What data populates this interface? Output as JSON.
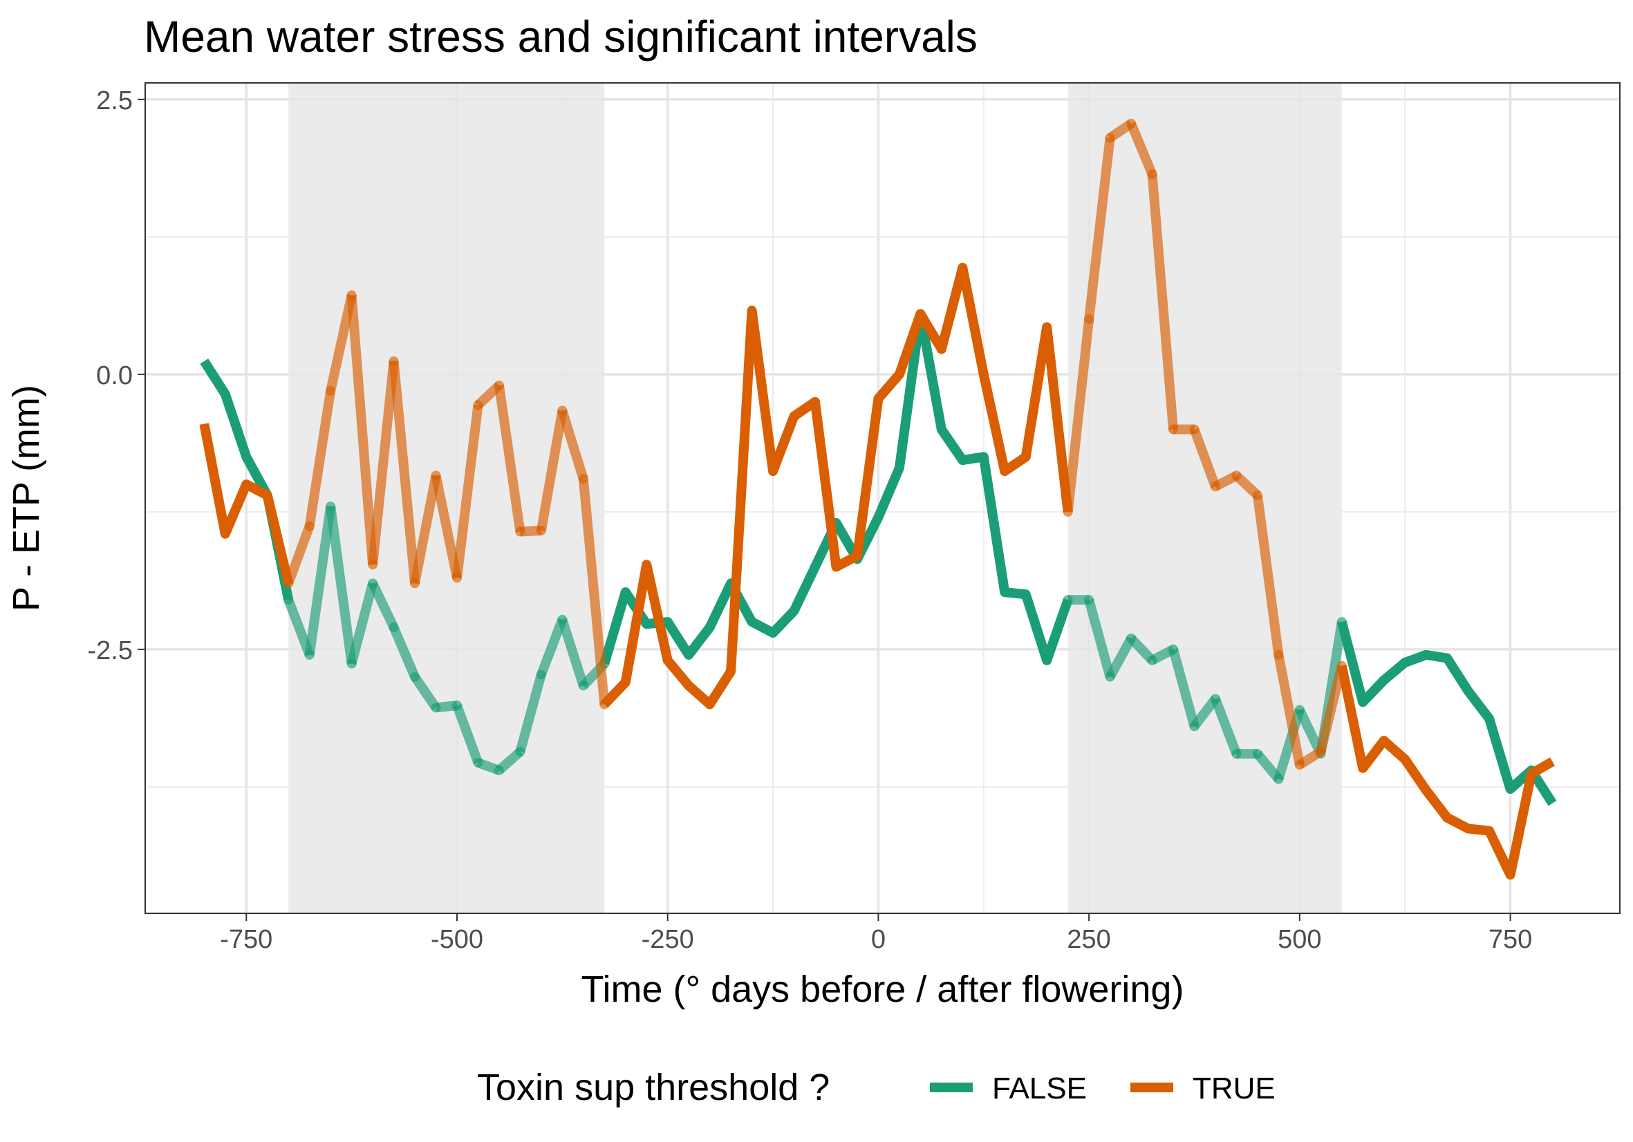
{
  "chart_data": {
    "type": "line",
    "title": "Mean water stress and significant intervals",
    "xlabel": "Time (° days before / after flowering)",
    "ylabel": "P - ETP (mm)",
    "xlim": [
      -870,
      880
    ],
    "ylim": [
      -4.9,
      2.65
    ],
    "xticks": [
      -750,
      -500,
      -250,
      0,
      250,
      500,
      750
    ],
    "xtick_labels": [
      "-750",
      "-500",
      "-250",
      "0",
      "250",
      "500",
      "750"
    ],
    "yticks": [
      2.5,
      0.0,
      -2.5
    ],
    "ytick_labels": [
      "2.5",
      "0.0",
      "-2.5"
    ],
    "minor_yticks": [
      1.25,
      -1.25,
      -3.75
    ],
    "minor_xticks": [
      -625,
      -375,
      -125,
      125,
      375,
      625
    ],
    "grid": true,
    "significant_intervals": [
      [
        -700,
        -325
      ],
      [
        225,
        550
      ]
    ],
    "x": [
      -800,
      -775,
      -750,
      -725,
      -700,
      -675,
      -650,
      -625,
      -600,
      -575,
      -550,
      -525,
      -500,
      -475,
      -450,
      -425,
      -400,
      -375,
      -350,
      -325,
      -300,
      -275,
      -250,
      -225,
      -200,
      -175,
      -150,
      -125,
      -100,
      -75,
      -50,
      -25,
      0,
      25,
      50,
      75,
      100,
      125,
      150,
      175,
      200,
      225,
      250,
      275,
      300,
      325,
      350,
      375,
      400,
      425,
      450,
      475,
      500,
      525,
      550,
      575,
      600,
      625,
      650,
      675,
      700,
      725,
      750,
      775,
      800
    ],
    "series": [
      {
        "name": "FALSE",
        "color": "#1b9e77",
        "values": [
          0.12,
          -0.18,
          -0.75,
          -1.1,
          -2.05,
          -2.55,
          -1.2,
          -2.63,
          -1.9,
          -2.3,
          -2.75,
          -3.03,
          -3.01,
          -3.53,
          -3.6,
          -3.43,
          -2.73,
          -2.23,
          -2.83,
          -2.63,
          -1.98,
          -2.27,
          -2.25,
          -2.55,
          -2.3,
          -1.9,
          -2.25,
          -2.35,
          -2.15,
          -1.75,
          -1.35,
          -1.68,
          -1.3,
          -0.85,
          0.55,
          -0.5,
          -0.78,
          -0.75,
          -1.98,
          -2.0,
          -2.6,
          -2.05,
          -2.05,
          -2.75,
          -2.4,
          -2.6,
          -2.5,
          -3.2,
          -2.95,
          -3.45,
          -3.45,
          -3.68,
          -3.05,
          -3.45,
          -2.25,
          -2.98,
          -2.78,
          -2.62,
          -2.55,
          -2.58,
          -2.88,
          -3.13,
          -3.77,
          -3.6,
          -3.9
        ]
      },
      {
        "name": "TRUE",
        "color": "#d95f02",
        "values": [
          -0.45,
          -1.45,
          -1.0,
          -1.1,
          -1.9,
          -1.38,
          -0.15,
          0.72,
          -1.73,
          0.12,
          -1.9,
          -0.92,
          -1.85,
          -0.28,
          -0.1,
          -1.43,
          -1.42,
          -0.33,
          -0.95,
          -3.0,
          -2.8,
          -1.73,
          -2.6,
          -2.83,
          -3.0,
          -2.7,
          0.58,
          -0.88,
          -0.38,
          -0.25,
          -1.75,
          -1.65,
          -0.22,
          0.0,
          0.55,
          0.23,
          0.97,
          0.0,
          -0.88,
          -0.75,
          0.43,
          -1.25,
          0.5,
          2.15,
          2.28,
          1.82,
          -0.5,
          -0.5,
          -1.02,
          -0.92,
          -1.1,
          -2.55,
          -3.55,
          -3.43,
          -2.65,
          -3.58,
          -3.33,
          -3.5,
          -3.78,
          -4.03,
          -4.13,
          -4.15,
          -4.55,
          -3.63,
          -3.52
        ]
      }
    ],
    "legend": {
      "title": "Toxin sup threshold ?",
      "position": "bottom",
      "entries": [
        "FALSE",
        "TRUE"
      ]
    }
  }
}
